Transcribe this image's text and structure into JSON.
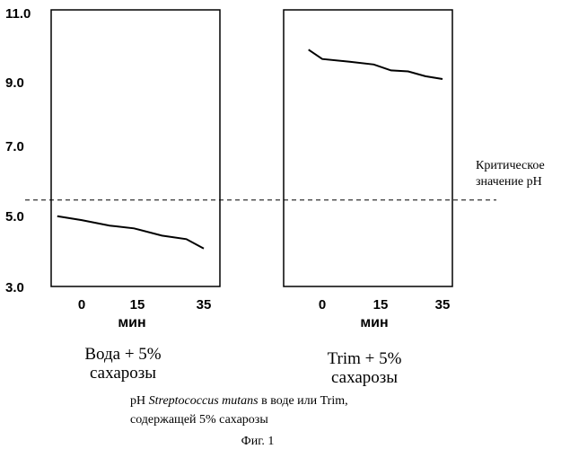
{
  "chart_data": {
    "type": "line",
    "y_ticks": [
      "11.0",
      "9.0",
      "7.0",
      "5.0",
      "3.0"
    ],
    "ylim": [
      3.0,
      11.0
    ],
    "threshold": {
      "value": 5.5,
      "label_line1": "Критическое",
      "label_line2": "значение pH"
    },
    "panels": [
      {
        "x_ticks": [
          "0",
          "15",
          "35"
        ],
        "xlabel": "мин",
        "caption_line1": "Вода + 5%",
        "caption_line2": "сахарозы",
        "series": [
          {
            "x": [
              -7,
              0,
              8,
              15,
              23,
              30,
              35
            ],
            "y": [
              5.03,
              4.92,
              4.76,
              4.68,
              4.47,
              4.37,
              4.1
            ]
          }
        ]
      },
      {
        "x_ticks": [
          "0",
          "15",
          "35"
        ],
        "xlabel": "мин",
        "caption_line1": "Trim + 5%",
        "caption_line2": "сахарозы",
        "series": [
          {
            "x": [
              -4,
              0,
              8,
              15,
              20,
              25,
              30,
              35
            ],
            "y": [
              9.85,
              9.58,
              9.5,
              9.42,
              9.25,
              9.22,
              9.08,
              9.0
            ]
          }
        ]
      }
    ],
    "caption_line1_pre": "pH",
    "caption_species": "Streptococcus mutans",
    "caption_line1_post": "в воде или Trim,",
    "caption_line2": "содержащей 5% сахарозы",
    "figure_label": "Фиг. 1"
  }
}
